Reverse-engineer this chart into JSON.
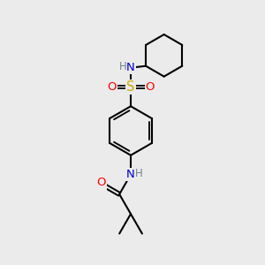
{
  "bg_color": "#ebebeb",
  "bond_color": "#000000",
  "bond_width": 1.5,
  "atom_colors": {
    "N": "#0000cd",
    "O": "#ff0000",
    "S": "#ccaa00",
    "H": "#708090",
    "C": "#000000"
  },
  "font_size": 9.5
}
